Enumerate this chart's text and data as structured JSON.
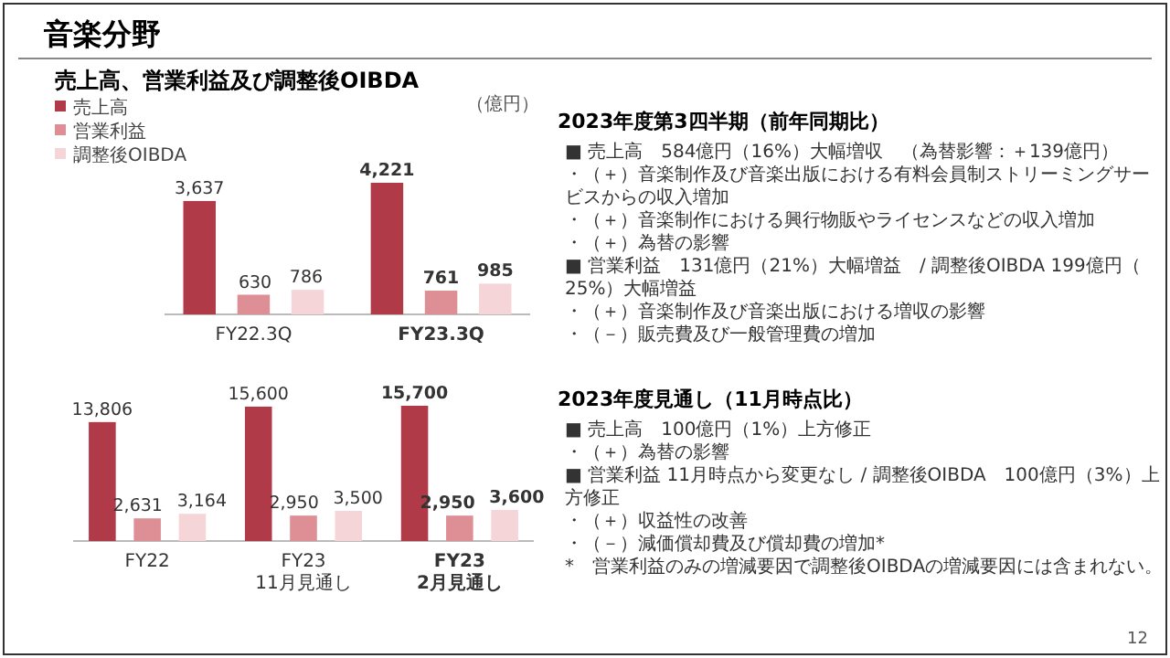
{
  "chart_data": [
    {
      "type": "bar",
      "title": "売上高、営業利益及び調整後OIBDA",
      "annotations": [
        "（億円）"
      ],
      "categories": [
        "FY22.3Q",
        "FY23.3Q"
      ],
      "legend": "top left",
      "series": [
        {
          "name": "売上高",
          "color": "#b03a48",
          "values": [
            3637,
            4221
          ],
          "value_labels": [
            "3,637",
            "4,221"
          ]
        },
        {
          "name": "営業利益",
          "color": "#de8f95",
          "values": [
            630,
            761
          ],
          "value_labels": [
            "630",
            "761"
          ]
        },
        {
          "name": "調整後OIBDA",
          "color": "#f5d5d8",
          "values": [
            786,
            985
          ],
          "value_labels": [
            "786",
            "985"
          ]
        }
      ]
    },
    {
      "type": "bar",
      "categories": [
        "FY22",
        "FY23\n11月見通し",
        "FY23\n2月見通し"
      ],
      "series": [
        {
          "color": "#b03a48",
          "values": [
            13806,
            15600,
            15700
          ],
          "value_labels": [
            "13,806",
            "15,600",
            "15,700"
          ]
        },
        {
          "color": "#de8f95",
          "values": [
            2631,
            2950,
            2950
          ],
          "value_labels": [
            "2,631",
            "2,950",
            "2,950"
          ]
        },
        {
          "color": "#f5d5d8",
          "values": [
            3164,
            3500,
            3600
          ],
          "value_labels": [
            "3,164",
            "3,500",
            "3,600"
          ]
        }
      ]
    },
    {
      "type": "other",
      "title": "2023年度第3四半期（前年同期比）",
      "annotations": [
        "■ 売上高　584億円（16%）大幅増収　（為替影響：＋139億円）",
        "・（＋）音楽制作及び音楽出版における有料会員制ストリーミングサービスからの収入増加",
        "・（＋）音楽制作における興行物販やライセンスなどの収入増加",
        "・（＋）為替の影響",
        "■ 営業利益　131億円（21%）大幅増益　/ 調整後OIBDA 199億円（25%）大幅増益",
        "・（＋）音楽制作及び音楽出版における増収の影響",
        "・（－）販売費及び一般管理費の増加"
      ]
    },
    {
      "type": "other",
      "title": "2023年度見通し（11月時点比）",
      "annotations": [
        "■ 売上高　100億円（1%）上方修正",
        "・（＋）為替の影響",
        "■ 営業利益 11月時点から変更なし / 調整後OIBDA　100億円（3%）上方修正",
        "・（＋）収益性の改善",
        "・（－）減価償却費及び償却費の増加*",
        "*　営業利益のみの増減要因で調整後OIBDAの増減要因には含まれない。"
      ]
    },
    {
      "type": "other",
      "title": "音楽分野",
      "annotations": [
        "12"
      ]
    }
  ]
}
